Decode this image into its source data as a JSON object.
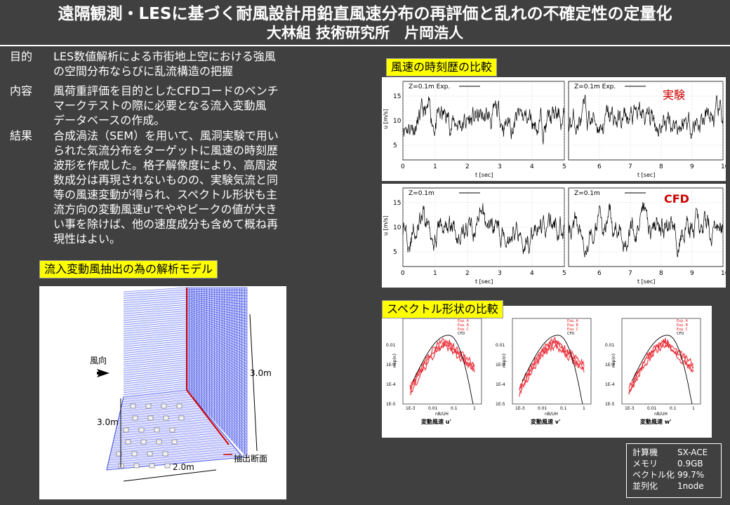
{
  "header": {
    "title": "遠隔観測・LESに基づく耐風設計用鉛直風速分布の再評価と乱れの不確定性の定量化",
    "author": "大林組 技術研究所　片岡浩人"
  },
  "sections": [
    {
      "label": "目的",
      "lines": [
        "LES数値解析による市街地上空における強風",
        "の空間分布ならびに乱流構造の把握"
      ]
    },
    {
      "label": "内容",
      "lines": [
        "風荷重評価を目的としたCFDコードのベンチ",
        "マークテストの際に必要となる流入変動風",
        "データベースの作成。"
      ]
    },
    {
      "label": "結果",
      "lines": [
        "合成渦法（SEM）を用いて、風洞実験で用い",
        "られた気流分布をターゲットに風速の時刻歴",
        "波形を作成した。格子解像度により、高周波",
        "数成分は再現されないものの、実験気流と同",
        "等の風速変動が得られ、スペクトル形状も主",
        "流方向の変動風速u'でややピークの値が大き",
        "い事を除けば、他の速度成分も含めて概ね再",
        "現性はよい。"
      ]
    }
  ],
  "model": {
    "heading": "流入変動風抽出の為の解析モデル",
    "wind_label": "風向",
    "height_label": "3.0m",
    "depth_label": "3.0m",
    "width_label": "2.0m",
    "section_label": "抽出断面"
  },
  "timeseries": {
    "heading": "風速の時刻歴の比較",
    "exp_label": "実験",
    "cfd_label": "CFD",
    "ylabel": "u [m/s]",
    "xlabel": "t [sec]",
    "legend_exp": "Z=0.1m Exp.",
    "legend_cfd": "Z=0.1m",
    "yticks": [
      "15",
      "10",
      "5"
    ],
    "xticks_left": [
      "0",
      "1",
      "2",
      "3",
      "4",
      "5"
    ],
    "xticks_right": [
      "6",
      "7",
      "8",
      "9",
      "10"
    ]
  },
  "spectra": {
    "heading": "スペクトル形状の比較",
    "ylabel": "nSp(n)",
    "xlabel": "nB/UH",
    "captions": [
      "変動風速 u'",
      "変動風速 v'",
      "変動風速 w'"
    ],
    "legend": [
      "Exp. A",
      "Exp. B",
      "Exp. C",
      "CFD"
    ],
    "yticks": [
      "0.01",
      "1E-3",
      "1E-4",
      "1E-5"
    ],
    "xticks": [
      "1E-3",
      "0.01",
      "0.1",
      "1"
    ]
  },
  "specs": [
    {
      "key": "計算機",
      "value": "SX-ACE"
    },
    {
      "key": "メモリ",
      "value": "0.9GB"
    },
    {
      "key": "ベクトル化",
      "value": "99.7%"
    },
    {
      "key": "並列化",
      "value": "1node"
    }
  ],
  "colors": {
    "background": "#404040",
    "tag": "#ffff00",
    "exp_curves": "#e8202a",
    "cfd_curve": "#000000",
    "grid_blue": "#2233dd",
    "annotation_red": "#cc0000"
  }
}
